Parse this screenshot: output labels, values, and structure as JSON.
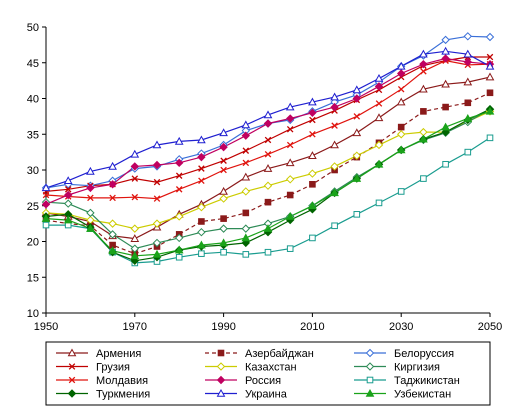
{
  "chart_data": {
    "type": "line",
    "title": "",
    "xlabel": "",
    "ylabel": "",
    "xlim": [
      1950,
      2050
    ],
    "ylim": [
      10,
      50
    ],
    "x_ticks": [
      1950,
      1970,
      1990,
      2010,
      2030,
      2050
    ],
    "y_ticks": [
      10,
      15,
      20,
      25,
      30,
      35,
      40,
      45,
      50
    ],
    "grid": false,
    "legend": "bottom",
    "x": [
      1950,
      1955,
      1960,
      1965,
      1970,
      1975,
      1980,
      1985,
      1990,
      1995,
      2000,
      2005,
      2010,
      2015,
      2020,
      2025,
      2030,
      2035,
      2040,
      2045,
      2050
    ],
    "series": [
      {
        "name": "Армения",
        "color": "#8b1a1a",
        "marker": "triangle-open",
        "dash": "solid",
        "values": [
          24.0,
          23.5,
          22.8,
          20.8,
          20.4,
          22.0,
          23.8,
          25.2,
          27.0,
          29.0,
          30.2,
          31.0,
          32.0,
          33.5,
          35.2,
          37.3,
          39.5,
          41.3,
          42.0,
          42.3,
          43.0
        ]
      },
      {
        "name": "Азербайджан",
        "color": "#8b1a1a",
        "marker": "square",
        "dash": "dashed",
        "values": [
          23.0,
          22.5,
          22.2,
          19.5,
          18.3,
          19.3,
          21.0,
          22.8,
          23.2,
          24.0,
          25.5,
          26.5,
          28.0,
          30.0,
          31.8,
          33.8,
          36.0,
          38.2,
          38.8,
          39.4,
          40.8
        ]
      },
      {
        "name": "Белоруссия",
        "color": "#3a6fd8",
        "marker": "diamond-open",
        "dash": "solid",
        "values": [
          27.5,
          28.0,
          27.8,
          28.5,
          30.2,
          30.5,
          31.5,
          32.3,
          33.5,
          35.5,
          36.5,
          37.0,
          38.2,
          39.5,
          40.5,
          42.3,
          44.5,
          46.0,
          48.2,
          48.7,
          48.6
        ]
      },
      {
        "name": "Грузия",
        "color": "#c00000",
        "marker": "cross",
        "dash": "solid",
        "values": [
          27.0,
          27.3,
          27.8,
          28.0,
          28.8,
          28.3,
          29.2,
          30.2,
          31.3,
          32.7,
          34.2,
          35.7,
          37.0,
          38.3,
          39.8,
          41.2,
          43.0,
          44.6,
          45.3,
          45.8,
          45.8
        ]
      },
      {
        "name": "Казахстан",
        "color": "#cccc00",
        "marker": "diamond-open",
        "dash": "solid",
        "values": [
          24.0,
          23.8,
          23.0,
          22.5,
          21.8,
          22.5,
          23.5,
          24.8,
          26.0,
          27.0,
          27.8,
          28.7,
          29.5,
          30.5,
          32.0,
          33.5,
          35.0,
          35.3,
          35.3,
          36.8,
          38.2
        ]
      },
      {
        "name": "Киргизия",
        "color": "#2e8b57",
        "marker": "diamond-open",
        "dash": "solid",
        "values": [
          25.5,
          25.3,
          24.0,
          21.0,
          19.0,
          19.8,
          20.5,
          21.3,
          21.8,
          21.8,
          22.5,
          23.5,
          25.0,
          27.0,
          29.0,
          30.8,
          32.8,
          34.2,
          35.2,
          36.7,
          38.5
        ]
      },
      {
        "name": "Молдавия",
        "color": "#e0140e",
        "marker": "cross",
        "dash": "solid",
        "values": [
          26.5,
          26.3,
          26.1,
          26.1,
          26.2,
          26.0,
          27.3,
          28.5,
          30.0,
          31.0,
          32.2,
          33.5,
          35.0,
          36.2,
          37.5,
          39.3,
          41.3,
          43.8,
          45.3,
          44.7,
          44.8
        ]
      },
      {
        "name": "Россия",
        "color": "#c00060",
        "marker": "diamond",
        "dash": "solid",
        "values": [
          25.2,
          26.5,
          27.5,
          28.0,
          30.5,
          30.7,
          31.0,
          31.8,
          33.2,
          34.8,
          36.5,
          37.2,
          38.0,
          38.8,
          40.0,
          41.7,
          43.5,
          44.8,
          45.6,
          45.1,
          44.8
        ]
      },
      {
        "name": "Таджикистан",
        "color": "#199c8f",
        "marker": "square-open",
        "dash": "solid",
        "values": [
          22.3,
          22.3,
          21.8,
          18.5,
          17.0,
          17.2,
          17.8,
          18.3,
          18.5,
          18.2,
          18.5,
          19.0,
          20.5,
          22.2,
          23.8,
          25.4,
          27.0,
          28.8,
          30.8,
          32.5,
          34.5
        ]
      },
      {
        "name": "Туркмения",
        "color": "#006400",
        "marker": "diamond",
        "dash": "solid",
        "values": [
          23.5,
          23.8,
          22.0,
          18.5,
          17.3,
          17.8,
          18.8,
          19.3,
          19.5,
          19.8,
          21.3,
          23.0,
          24.5,
          26.8,
          28.8,
          30.8,
          32.8,
          34.3,
          35.3,
          37.0,
          38.5
        ]
      },
      {
        "name": "Украина",
        "color": "#1f1fd0",
        "marker": "triangle-open",
        "dash": "solid",
        "values": [
          27.5,
          28.5,
          29.8,
          30.5,
          32.2,
          33.5,
          34.0,
          34.2,
          35.2,
          36.3,
          37.7,
          38.8,
          39.5,
          40.2,
          41.2,
          42.8,
          44.5,
          46.2,
          46.6,
          46.2,
          44.5
        ]
      },
      {
        "name": "Узбекистан",
        "color": "#1aa31a",
        "marker": "triangle",
        "dash": "solid",
        "values": [
          23.2,
          23.0,
          21.8,
          18.7,
          18.0,
          18.2,
          18.8,
          19.5,
          19.8,
          20.5,
          21.8,
          23.5,
          25.0,
          26.8,
          28.8,
          30.8,
          32.8,
          34.3,
          36.0,
          37.2,
          38.2
        ]
      }
    ]
  }
}
